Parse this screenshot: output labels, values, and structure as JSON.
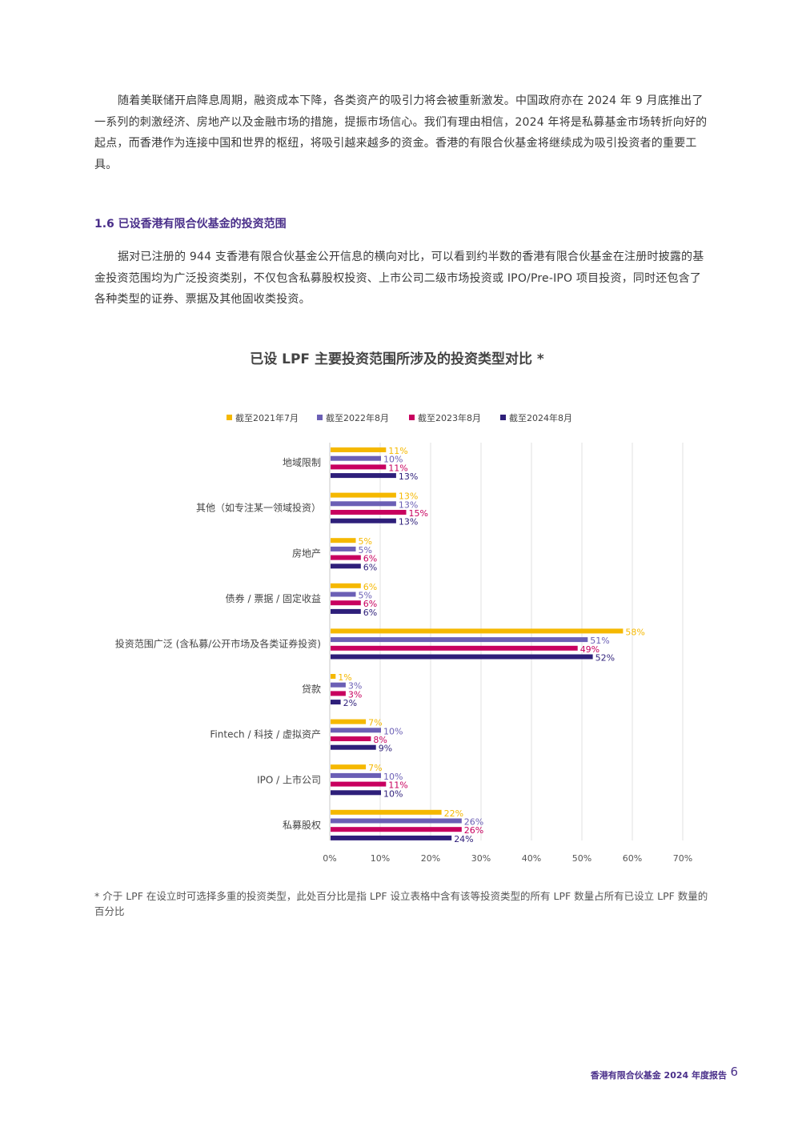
{
  "paragraphs": {
    "intro": "随着美联储开启降息周期，融资成本下降，各类资产的吸引力将会被重新激发。中国政府亦在 2024 年 9 月底推出了一系列的刺激经济、房地产以及金融市场的措施，提振市场信心。我们有理由相信，2024 年将是私募基金市场转折向好的起点，而香港作为连接中国和世界的枢纽，将吸引越来越多的资金。香港的有限合伙基金将继续成为吸引投资者的重要工具。",
    "section": "据对已注册的 944 支香港有限合伙基金公开信息的横向对比，可以看到约半数的香港有限合伙基金在注册时披露的基金投资范围均为广泛投资类别，不仅包含私募股权投资、上市公司二级市场投资或 IPO/Pre-IPO 项目投资，同时还包含了各种类型的证券、票据及其他固收类投资。"
  },
  "section_heading": "1.6  已设香港有限合伙基金的投资范围",
  "footnote": "* 介于 LPF 在设立时可选择多重的投资类型，此处百分比是指 LPF 设立表格中含有该等投资类型的所有 LPF 数量占所有已设立 LPF 数量的百分比",
  "footer": {
    "report_title": "香港有限合伙基金 2024 年度报告",
    "page_number": "6"
  },
  "chart_data": {
    "type": "bar",
    "orientation": "horizontal",
    "title": "已设 LPF 主要投资范围所涉及的投资类型对比 *",
    "categories": [
      "地域限制",
      "其他（如专注某一领域投资）",
      "房地产",
      "债券 / 票据 / 固定收益",
      "投资范围广泛 (含私募/公开市场及各类证券投资)",
      "贷款",
      "Fintech / 科技 / 虚拟资产",
      "IPO / 上市公司",
      "私募股权"
    ],
    "series": [
      {
        "name": "截至2021年7月",
        "color": "#f5b800",
        "values": [
          11,
          13,
          5,
          6,
          58,
          1,
          7,
          7,
          22
        ]
      },
      {
        "name": "截至2022年8月",
        "color": "#6b5fb5",
        "values": [
          10,
          13,
          5,
          5,
          51,
          3,
          10,
          10,
          26
        ]
      },
      {
        "name": "截至2023年8月",
        "color": "#c8005f",
        "values": [
          11,
          15,
          6,
          6,
          49,
          3,
          8,
          11,
          26
        ]
      },
      {
        "name": "截至2024年8月",
        "color": "#2e1f7a",
        "values": [
          13,
          13,
          6,
          6,
          52,
          2,
          9,
          10,
          24
        ]
      }
    ],
    "value_suffix": "%",
    "xlim": [
      0,
      70
    ],
    "xticks": [
      "0%",
      "10%",
      "20%",
      "30%",
      "40%",
      "50%",
      "60%",
      "70%"
    ],
    "grid": true,
    "legend_position": "top"
  }
}
